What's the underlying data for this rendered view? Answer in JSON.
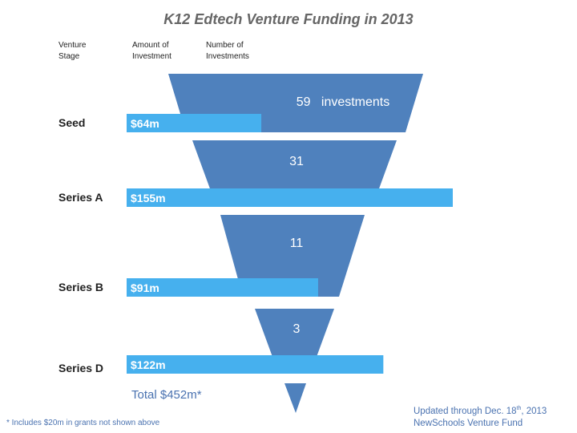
{
  "header": {
    "title": "K12 Edtech Venture Funding in 2013",
    "col_stage": [
      "Venture",
      "Stage"
    ],
    "col_amount": [
      "Amount of",
      "Investment"
    ],
    "col_number": [
      "Number of",
      "Investments"
    ]
  },
  "chart_data": {
    "type": "bar",
    "title": "K12 Edtech Venture Funding in 2013",
    "subtype": "funnel with horizontal bars",
    "categories": [
      "Seed",
      "Series A",
      "Series B",
      "Series D"
    ],
    "series": [
      {
        "name": "Amount of Investment ($m)",
        "values": [
          64,
          155,
          91,
          122
        ],
        "labels": [
          "$64m",
          "$155m",
          "$91m",
          "$122m"
        ],
        "color": "#46b0ee"
      },
      {
        "name": "Number of Investments",
        "values": [
          59,
          31,
          11,
          3
        ],
        "labels": [
          "59   investments",
          "31",
          "11",
          "3"
        ],
        "color": "#4f81bd"
      }
    ],
    "total_label": "Total $452m*",
    "footnote": "* Includes $20m in grants not shown above",
    "xlabel": "",
    "ylabel": "Venture Stage",
    "legend": "none"
  },
  "source": {
    "updated_prefix": "Updated through Dec. 18",
    "updated_sup": "th",
    "updated_suffix": ", 2013",
    "org": "NewSchools Venture Fund"
  }
}
